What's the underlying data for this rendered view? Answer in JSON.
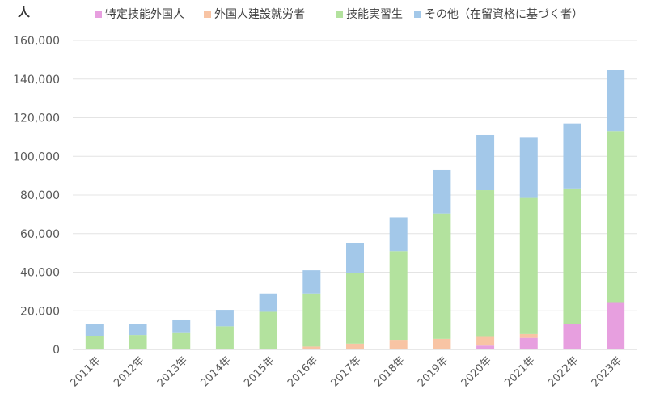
{
  "chart_data": {
    "type": "bar",
    "stacked": true,
    "unit_label": "人",
    "categories": [
      "2011年",
      "2012年",
      "2013年",
      "2014年",
      "2015年",
      "2016年",
      "2017年",
      "2018年",
      "2019年",
      "2020年",
      "2021年",
      "2022年",
      "2023年"
    ],
    "ylim": [
      0,
      160000
    ],
    "yticks": [
      "0",
      "20,000",
      "40,000",
      "60,000",
      "80,000",
      "100,000",
      "120,000",
      "140,000",
      "160,000"
    ],
    "grid": true,
    "legend_position": "top",
    "series": [
      {
        "name": "特定技能外国人",
        "color": "#e79fdf",
        "values": [
          0,
          0,
          0,
          0,
          0,
          0,
          0,
          0,
          0,
          2000,
          6000,
          13000,
          24500
        ]
      },
      {
        "name": "外国人建設就労者",
        "color": "#f8c4a4",
        "values": [
          0,
          0,
          0,
          0,
          0,
          1500,
          3000,
          5000,
          5500,
          4500,
          2000,
          0,
          0
        ]
      },
      {
        "name": "技能実習生",
        "color": "#b3e29e",
        "values": [
          7000,
          7500,
          8500,
          12000,
          19500,
          27500,
          36500,
          46000,
          65000,
          76000,
          70500,
          70000,
          88500
        ]
      },
      {
        "name": "その他（在留資格に基づく者）",
        "color": "#a3c8e9",
        "values": [
          6000,
          5500,
          7000,
          8500,
          9500,
          12000,
          15500,
          17500,
          22500,
          28500,
          31500,
          34000,
          31500
        ]
      }
    ]
  }
}
